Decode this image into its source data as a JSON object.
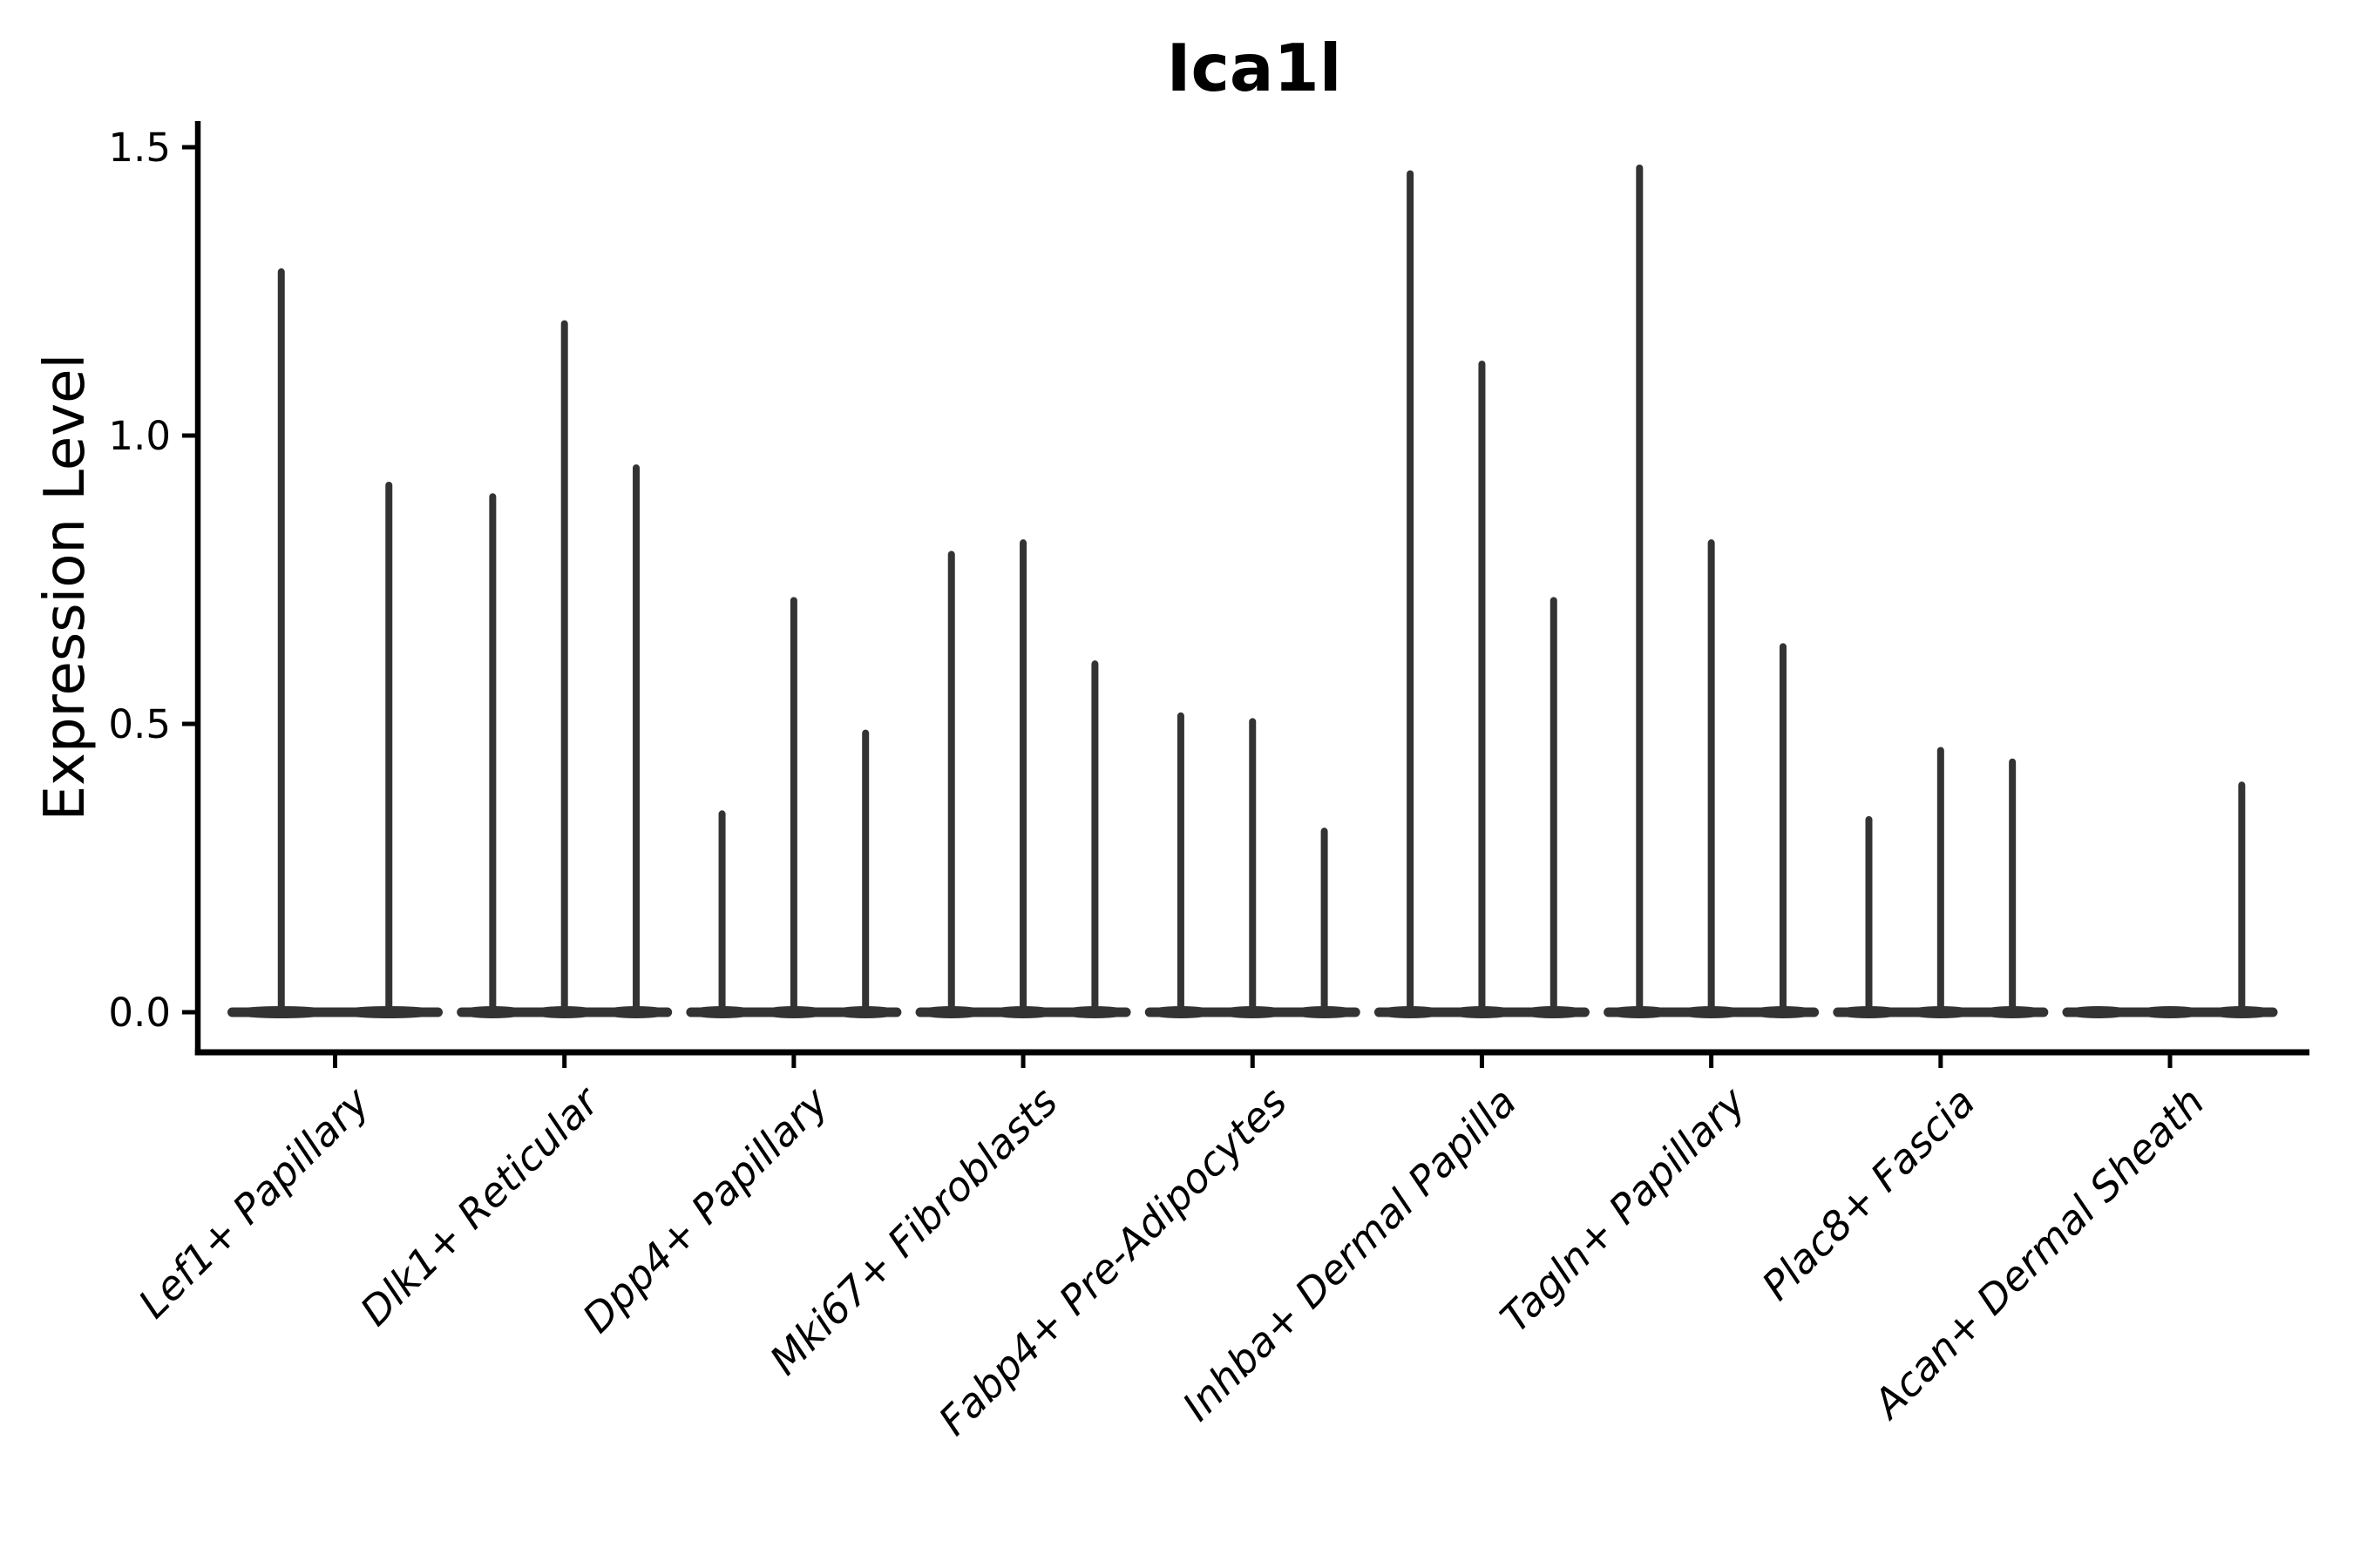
{
  "figure": {
    "title": "Ica1l",
    "ylabel": "Expression Level"
  },
  "chart_data": {
    "type": "violin",
    "title": "Ica1l",
    "xlabel": "",
    "ylabel": "Expression Level",
    "ylim": [
      -0.07,
      1.55
    ],
    "yticks": [
      0.0,
      0.5,
      1.0,
      1.5
    ],
    "ytick_labels": [
      "0.0",
      "0.5",
      "1.0",
      "1.5"
    ],
    "grid": false,
    "legend": "none",
    "violin_color": "#333333",
    "axis_color": "#000000",
    "categories": [
      {
        "label": "Lef1+ Papillary",
        "violin_max_values": [
          1.29,
          0.92
        ]
      },
      {
        "label": "Dlk1+ Reticular",
        "violin_max_values": [
          0.9,
          1.2,
          0.95
        ]
      },
      {
        "label": "Dpp4+ Papillary",
        "violin_max_values": [
          0.35,
          0.72,
          0.49
        ]
      },
      {
        "label": "Mki67+ Fibroblasts",
        "violin_max_values": [
          0.8,
          0.82,
          0.61
        ]
      },
      {
        "label": "Fabp4+ Pre-Adipocytes",
        "violin_max_values": [
          0.52,
          0.51,
          0.32
        ]
      },
      {
        "label": "Inhba+ Dermal Papilla",
        "violin_max_values": [
          1.46,
          1.13,
          0.72
        ]
      },
      {
        "label": "Tagln+ Papillary",
        "violin_max_values": [
          1.47,
          0.82,
          0.64
        ]
      },
      {
        "label": "Plac8+ Fascia",
        "violin_max_values": [
          0.34,
          0.46,
          0.44
        ]
      },
      {
        "label": "Acan+ Dermal Sheath",
        "violin_max_values": [
          0.0,
          0.0,
          0.4
        ]
      }
    ]
  }
}
